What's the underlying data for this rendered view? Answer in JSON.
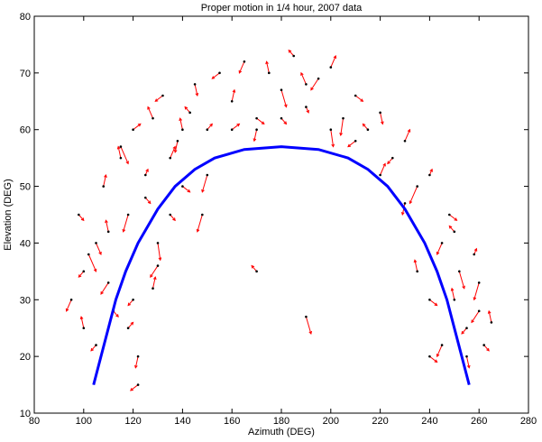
{
  "chart_data": {
    "type": "quiver",
    "title": "Proper motion in 1/4 hour, 2007 data",
    "xlabel": "Azimuth (DEG)",
    "ylabel": "Elevation (DEG)",
    "xlim": [
      80,
      280
    ],
    "ylim": [
      10,
      80
    ],
    "xticks": [
      80,
      100,
      120,
      140,
      160,
      180,
      200,
      220,
      240,
      260,
      280
    ],
    "yticks": [
      10,
      20,
      30,
      40,
      50,
      60,
      70,
      80
    ],
    "series": [
      {
        "type": "quiver",
        "color": "#000000",
        "arrow_color": "#ff0000",
        "x": [
          95,
          98,
          100,
          102,
          105,
          108,
          110,
          112,
          115,
          118,
          120,
          122,
          125,
          128,
          130,
          132,
          135,
          138,
          140,
          143,
          145,
          148,
          150,
          155,
          160,
          165,
          170,
          175,
          180,
          185,
          190,
          195,
          200,
          205,
          210,
          215,
          220,
          225,
          230,
          235,
          240,
          245,
          248,
          250,
          252,
          255,
          258,
          260,
          262,
          265,
          100,
          105,
          110,
          115,
          120,
          125,
          130,
          135,
          140,
          150,
          160,
          170,
          180,
          190,
          200,
          210,
          220,
          230,
          240,
          250,
          255,
          260,
          118,
          122,
          128,
          245,
          240,
          235,
          190,
          170
        ],
        "y": [
          30,
          45,
          25,
          38,
          22,
          50,
          33,
          28,
          55,
          45,
          60,
          20,
          48,
          62,
          40,
          66,
          55,
          58,
          50,
          63,
          68,
          45,
          60,
          70,
          65,
          72,
          62,
          70,
          67,
          73,
          64,
          69,
          71,
          62,
          66,
          60,
          63,
          55,
          58,
          50,
          52,
          40,
          45,
          30,
          35,
          25,
          38,
          28,
          22,
          26,
          35,
          40,
          42,
          57,
          30,
          52,
          36,
          45,
          60,
          52,
          60,
          60,
          62,
          68,
          60,
          58,
          52,
          47,
          30,
          42,
          20,
          33,
          25,
          15,
          32,
          22,
          20,
          35,
          27,
          35
        ],
        "u": [
          -2,
          2,
          -1,
          3,
          -2,
          1,
          -3,
          2,
          -1,
          -2,
          3,
          -1,
          2,
          -2,
          1,
          -3,
          2,
          -1,
          3,
          -2,
          1,
          -2,
          2,
          -3,
          1,
          -2,
          3,
          -1,
          2,
          -2,
          1,
          -3,
          2,
          -1,
          3,
          -2,
          1,
          -2,
          2,
          -3,
          1,
          -2,
          3,
          -1,
          2,
          -2,
          1,
          -3,
          2,
          -1,
          -2,
          2,
          -1,
          3,
          -2,
          1,
          -3,
          2,
          -1,
          -2,
          3,
          -1,
          2,
          -2,
          1,
          -3,
          2,
          -1,
          3,
          -2,
          1,
          -2,
          2,
          -3,
          1,
          -2,
          3,
          -1,
          2,
          -2
        ],
        "v": [
          -2,
          -1,
          2,
          -3,
          -1,
          2,
          -2,
          -1,
          2,
          -3,
          1,
          -2,
          -1,
          2,
          -3,
          -1,
          2,
          -2,
          -1,
          1,
          -2,
          -3,
          1,
          -1,
          2,
          -2,
          -1,
          2,
          -3,
          1,
          -1,
          -2,
          2,
          -3,
          -1,
          1,
          -2,
          -1,
          2,
          -3,
          1,
          -2,
          -1,
          2,
          -3,
          -1,
          1,
          -2,
          -1,
          2,
          -1,
          -2,
          2,
          -3,
          -1,
          1,
          -2,
          -1,
          2,
          -3,
          1,
          -2,
          -1,
          2,
          -3,
          -1,
          2,
          -2,
          -1,
          1,
          -2,
          -3,
          1,
          -1,
          2,
          -2,
          -1,
          2,
          -3,
          1
        ]
      },
      {
        "type": "line",
        "color": "#0000ff",
        "x": [
          104,
          107,
          110,
          113,
          117,
          122,
          130,
          137,
          145,
          153,
          165,
          180,
          195,
          207,
          215,
          223,
          230,
          238,
          243,
          247,
          250,
          253,
          256
        ],
        "y": [
          15,
          20,
          25,
          30,
          35,
          40,
          46,
          50,
          53,
          55,
          56.5,
          57,
          56.5,
          55,
          53,
          50,
          46,
          40,
          35,
          30,
          25,
          20,
          15
        ]
      }
    ]
  }
}
